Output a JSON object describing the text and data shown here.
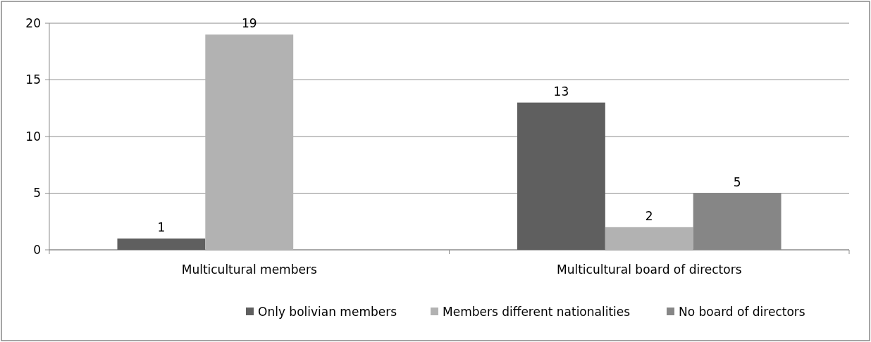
{
  "chart_data": {
    "type": "bar",
    "categories": [
      "Multicultural members",
      "Multicultural board of directors"
    ],
    "series": [
      {
        "name": "Only bolivian members",
        "color": "#5f5f5f",
        "values": [
          1,
          13
        ]
      },
      {
        "name": "Members different nationalities",
        "color": "#b2b2b2",
        "values": [
          19,
          2
        ]
      },
      {
        "name": "No board of directors",
        "color": "#868686",
        "values": [
          null,
          5
        ]
      }
    ],
    "ylim": [
      0,
      20
    ],
    "yticks": [
      0,
      5,
      10,
      15,
      20
    ],
    "grid": "y",
    "legend": "bottom",
    "data_labels": true
  }
}
